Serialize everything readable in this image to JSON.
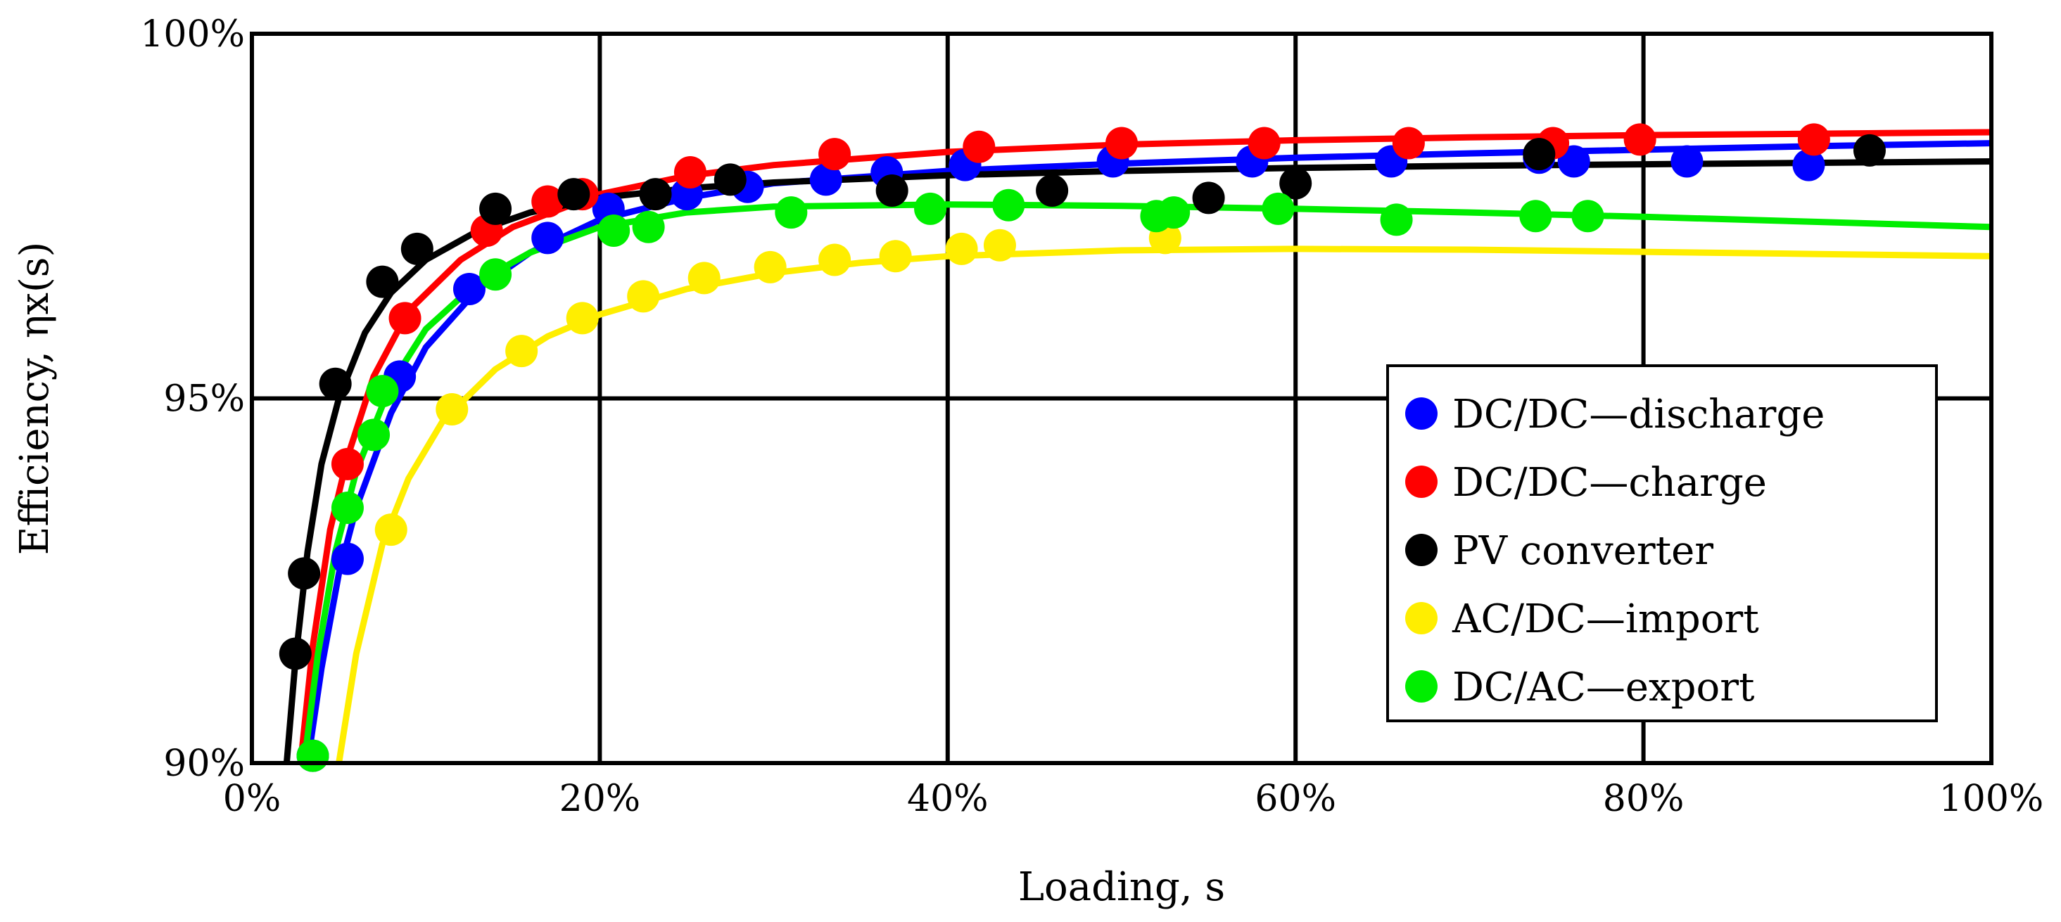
{
  "chart_data": {
    "type": "scatter",
    "title": "",
    "xlabel": "Loading, s",
    "ylabel": "Efficiency, ηx(s)",
    "xlim": [
      0,
      100
    ],
    "ylim": [
      90,
      100
    ],
    "x_ticks": [
      "0%",
      "20%",
      "40%",
      "60%",
      "80%",
      "100%"
    ],
    "y_ticks": [
      "90%",
      "95%",
      "100%"
    ],
    "grid": true,
    "legend_position": "right",
    "series": [
      {
        "name": "DC/DC—discharge",
        "color": "#0000ff",
        "points": [
          [
            3.5,
            90.1
          ],
          [
            5.5,
            92.8
          ],
          [
            8.5,
            95.3
          ],
          [
            12.5,
            96.5
          ],
          [
            17,
            97.2
          ],
          [
            20.5,
            97.6
          ],
          [
            25,
            97.8
          ],
          [
            28.5,
            97.9
          ],
          [
            33,
            98.0
          ],
          [
            36.5,
            98.1
          ],
          [
            41,
            98.2
          ],
          [
            49.5,
            98.25
          ],
          [
            57.5,
            98.25
          ],
          [
            65.5,
            98.25
          ],
          [
            74,
            98.3
          ],
          [
            76,
            98.25
          ],
          [
            82.5,
            98.25
          ],
          [
            89.5,
            98.2
          ]
        ],
        "fit": [
          [
            3.2,
            90
          ],
          [
            4,
            91.3
          ],
          [
            5,
            92.6
          ],
          [
            6,
            93.5
          ],
          [
            8,
            94.8
          ],
          [
            10,
            95.7
          ],
          [
            13,
            96.5
          ],
          [
            16,
            97.0
          ],
          [
            20,
            97.45
          ],
          [
            25,
            97.75
          ],
          [
            30,
            97.95
          ],
          [
            40,
            98.12
          ],
          [
            50,
            98.22
          ],
          [
            60,
            98.3
          ],
          [
            70,
            98.36
          ],
          [
            80,
            98.41
          ],
          [
            90,
            98.46
          ],
          [
            100,
            98.5
          ]
        ]
      },
      {
        "name": "DC/DC—charge",
        "color": "#ff0000",
        "points": [
          [
            5.5,
            94.1
          ],
          [
            8.8,
            96.1
          ],
          [
            13.5,
            97.3
          ],
          [
            17,
            97.7
          ],
          [
            19,
            97.8
          ],
          [
            25.2,
            98.1
          ],
          [
            33.5,
            98.35
          ],
          [
            41.8,
            98.45
          ],
          [
            50,
            98.5
          ],
          [
            58.2,
            98.5
          ],
          [
            66.5,
            98.5
          ],
          [
            74.8,
            98.5
          ],
          [
            79.8,
            98.55
          ],
          [
            89.8,
            98.55
          ]
        ],
        "fit": [
          [
            2.8,
            90
          ],
          [
            3.5,
            91.6
          ],
          [
            4.5,
            93.2
          ],
          [
            5.5,
            94.2
          ],
          [
            7,
            95.3
          ],
          [
            9,
            96.2
          ],
          [
            12,
            96.9
          ],
          [
            15,
            97.35
          ],
          [
            20,
            97.8
          ],
          [
            25,
            98.05
          ],
          [
            30,
            98.2
          ],
          [
            40,
            98.38
          ],
          [
            50,
            98.48
          ],
          [
            60,
            98.54
          ],
          [
            70,
            98.58
          ],
          [
            80,
            98.61
          ],
          [
            90,
            98.63
          ],
          [
            100,
            98.65
          ]
        ]
      },
      {
        "name": "PV converter",
        "color": "#000000",
        "points": [
          [
            2.5,
            91.5
          ],
          [
            3,
            92.6
          ],
          [
            4.8,
            95.2
          ],
          [
            7.5,
            96.6
          ],
          [
            9.5,
            97.05
          ],
          [
            14,
            97.6
          ],
          [
            18.5,
            97.8
          ],
          [
            23.2,
            97.8
          ],
          [
            27.5,
            98.0
          ],
          [
            36.8,
            97.85
          ],
          [
            46,
            97.85
          ],
          [
            55,
            97.75
          ],
          [
            60,
            97.95
          ],
          [
            74,
            98.35
          ],
          [
            93,
            98.4
          ]
        ],
        "fit": [
          [
            2,
            90
          ],
          [
            2.5,
            91.4
          ],
          [
            3.2,
            92.9
          ],
          [
            4,
            94.1
          ],
          [
            5,
            95.0
          ],
          [
            6.5,
            95.9
          ],
          [
            8,
            96.45
          ],
          [
            10,
            96.9
          ],
          [
            13,
            97.3
          ],
          [
            16,
            97.55
          ],
          [
            20,
            97.75
          ],
          [
            25,
            97.88
          ],
          [
            30,
            97.96
          ],
          [
            40,
            98.06
          ],
          [
            50,
            98.12
          ],
          [
            60,
            98.16
          ],
          [
            70,
            98.19
          ],
          [
            80,
            98.21
          ],
          [
            90,
            98.23
          ],
          [
            100,
            98.25
          ]
        ]
      },
      {
        "name": "AC/DC—import",
        "color": "#ffee00",
        "points": [
          [
            8,
            93.2
          ],
          [
            11.5,
            94.85
          ],
          [
            15.5,
            95.65
          ],
          [
            19,
            96.1
          ],
          [
            22.5,
            96.4
          ],
          [
            26,
            96.65
          ],
          [
            29.8,
            96.8
          ],
          [
            33.5,
            96.9
          ],
          [
            37,
            96.95
          ],
          [
            40.8,
            97.05
          ],
          [
            43,
            97.1
          ],
          [
            52.5,
            97.2
          ]
        ],
        "fit": [
          [
            5,
            90
          ],
          [
            6,
            91.5
          ],
          [
            7.5,
            93.0
          ],
          [
            9,
            93.9
          ],
          [
            11,
            94.7
          ],
          [
            14,
            95.4
          ],
          [
            17,
            95.85
          ],
          [
            20,
            96.15
          ],
          [
            25,
            96.5
          ],
          [
            30,
            96.72
          ],
          [
            35,
            96.86
          ],
          [
            40,
            96.95
          ],
          [
            50,
            97.03
          ],
          [
            60,
            97.05
          ],
          [
            70,
            97.04
          ],
          [
            80,
            97.01
          ],
          [
            90,
            96.98
          ],
          [
            100,
            96.95
          ]
        ]
      },
      {
        "name": "DC/AC—export",
        "color": "#00ee00",
        "points": [
          [
            3.5,
            90.1
          ],
          [
            5.5,
            93.5
          ],
          [
            7,
            94.5
          ],
          [
            7.5,
            95.1
          ],
          [
            14,
            96.7
          ],
          [
            20.8,
            97.3
          ],
          [
            22.8,
            97.35
          ],
          [
            31,
            97.55
          ],
          [
            39,
            97.6
          ],
          [
            43.5,
            97.65
          ],
          [
            52,
            97.5
          ],
          [
            53,
            97.55
          ],
          [
            59,
            97.6
          ],
          [
            65.8,
            97.45
          ],
          [
            73.8,
            97.5
          ],
          [
            76.8,
            97.5
          ]
        ],
        "fit": [
          [
            3,
            90
          ],
          [
            3.8,
            91.5
          ],
          [
            4.8,
            92.9
          ],
          [
            6,
            94.0
          ],
          [
            8,
            95.2
          ],
          [
            10,
            95.95
          ],
          [
            13,
            96.6
          ],
          [
            16,
            97.0
          ],
          [
            20,
            97.35
          ],
          [
            25,
            97.55
          ],
          [
            30,
            97.63
          ],
          [
            40,
            97.66
          ],
          [
            50,
            97.64
          ],
          [
            60,
            97.6
          ],
          [
            70,
            97.55
          ],
          [
            80,
            97.49
          ],
          [
            90,
            97.42
          ],
          [
            100,
            97.35
          ]
        ]
      }
    ]
  }
}
